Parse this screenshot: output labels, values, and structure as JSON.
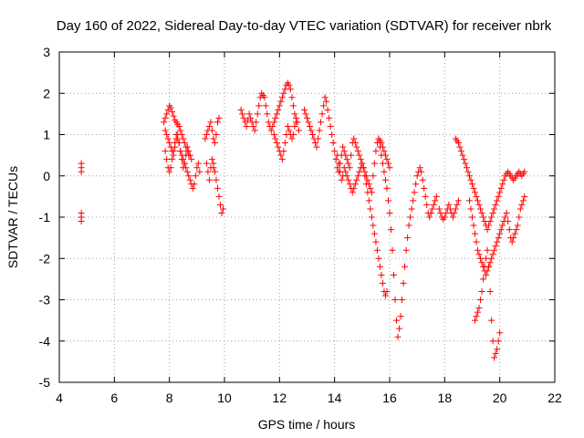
{
  "chart_data": {
    "type": "scatter",
    "title": "Day 160 of 2022, Sidereal Day-to-day VTEC variation (SDTVAR) for receiver nbrk",
    "xlabel": "GPS time / hours",
    "ylabel": "SDTVAR / TECUs",
    "xlim": [
      4,
      22
    ],
    "ylim": [
      -5,
      3
    ],
    "xticks": [
      4,
      6,
      8,
      10,
      12,
      14,
      16,
      18,
      20,
      22
    ],
    "yticks": [
      -5,
      -4,
      -3,
      -2,
      -1,
      0,
      1,
      2,
      3
    ],
    "grid": true,
    "marker": "+",
    "color": "#ff0000",
    "series": [
      {
        "name": "SDTVAR",
        "x": [
          4.8,
          4.8,
          4.8,
          4.8,
          4.8,
          4.8,
          7.8,
          7.85,
          7.9,
          7.95,
          8.0,
          8.05,
          8.1,
          8.15,
          8.2,
          8.25,
          8.3,
          8.35,
          8.4,
          8.45,
          8.5,
          8.55,
          8.6,
          8.65,
          8.7,
          7.85,
          7.9,
          7.95,
          8.0,
          8.05,
          8.1,
          8.15,
          8.2,
          8.25,
          8.3,
          8.35,
          8.4,
          8.45,
          8.5,
          8.55,
          8.6,
          8.65,
          8.7,
          8.75,
          8.8,
          8.85,
          8.9,
          8.95,
          9.0,
          9.05,
          9.1,
          7.85,
          7.9,
          7.95,
          8.0,
          8.05,
          8.1,
          8.15,
          8.2,
          8.25,
          8.3,
          8.35,
          8.4,
          8.45,
          8.5,
          8.55,
          8.6,
          8.65,
          8.7,
          8.75,
          8.8,
          9.3,
          9.35,
          9.4,
          9.45,
          9.5,
          9.55,
          9.6,
          9.65,
          9.7,
          9.75,
          9.8,
          9.6,
          9.65,
          9.7,
          9.75,
          9.8,
          9.85,
          9.9,
          9.95,
          9.35,
          9.4,
          9.45,
          9.5,
          9.55,
          9.6,
          10.6,
          10.65,
          10.7,
          10.75,
          10.8,
          10.85,
          10.9,
          10.95,
          11.0,
          11.05,
          11.1,
          11.15,
          11.2,
          11.25,
          11.3,
          11.35,
          11.4,
          11.45,
          11.5,
          11.55,
          11.6,
          11.65,
          11.7,
          11.75,
          11.8,
          11.85,
          11.9,
          11.95,
          12.0,
          12.05,
          12.1,
          12.15,
          12.2,
          12.25,
          12.3,
          12.35,
          12.4,
          12.45,
          12.5,
          12.55,
          12.6,
          11.8,
          11.85,
          11.9,
          11.95,
          12.0,
          12.05,
          12.1,
          12.15,
          12.2,
          12.25,
          12.3,
          12.35,
          12.4,
          12.45,
          12.5,
          12.55,
          12.6,
          12.65,
          12.7,
          12.9,
          12.95,
          13.0,
          13.05,
          13.1,
          13.15,
          13.2,
          13.25,
          13.3,
          13.35,
          13.4,
          13.45,
          13.5,
          13.55,
          13.6,
          13.65,
          13.7,
          13.75,
          13.8,
          13.85,
          13.9,
          13.95,
          14.0,
          14.05,
          14.1,
          14.15,
          14.2,
          14.25,
          14.3,
          14.35,
          14.4,
          14.45,
          14.5,
          14.55,
          14.6,
          14.65,
          14.7,
          14.75,
          14.8,
          14.85,
          14.9,
          14.95,
          15.0,
          15.05,
          15.1,
          15.15,
          15.2,
          15.25,
          15.3,
          15.35,
          15.4,
          15.45,
          15.5,
          15.55,
          15.6,
          15.65,
          15.7,
          15.75,
          15.8,
          15.85,
          15.9,
          15.95,
          16.0,
          14.1,
          14.15,
          14.2,
          14.25,
          14.3,
          14.35,
          14.4,
          14.45,
          14.5,
          14.55,
          14.6,
          14.65,
          14.7,
          14.75,
          14.8,
          14.85,
          14.9,
          14.95,
          15.0,
          15.05,
          15.1,
          15.15,
          15.2,
          15.25,
          15.3,
          15.35,
          15.4,
          15.45,
          15.5,
          15.55,
          15.6,
          15.65,
          15.7,
          15.75,
          15.8,
          15.85,
          15.9,
          15.6,
          15.65,
          15.7,
          15.75,
          15.8,
          15.85,
          15.9,
          15.95,
          16.0,
          16.05,
          16.1,
          16.15,
          16.2,
          16.25,
          16.3,
          16.35,
          16.4,
          16.45,
          16.5,
          16.55,
          16.6,
          16.65,
          16.7,
          16.75,
          16.8,
          16.85,
          16.9,
          16.95,
          17.0,
          17.05,
          17.1,
          17.15,
          17.2,
          17.25,
          17.3,
          17.35,
          17.4,
          17.45,
          17.5,
          17.55,
          17.6,
          17.65,
          17.7,
          17.8,
          17.85,
          17.9,
          17.95,
          18.0,
          18.05,
          18.1,
          18.15,
          18.2,
          18.25,
          18.3,
          18.35,
          18.4,
          18.45,
          18.5,
          18.4,
          18.45,
          18.5,
          18.55,
          18.6,
          18.65,
          18.7,
          18.75,
          18.8,
          18.85,
          18.9,
          18.95,
          19.0,
          19.05,
          19.1,
          19.15,
          19.2,
          19.25,
          19.3,
          19.35,
          19.4,
          19.45,
          19.5,
          19.55,
          19.6,
          19.65,
          19.7,
          19.75,
          19.8,
          19.85,
          19.9,
          19.95,
          20.0,
          20.05,
          20.1,
          20.15,
          20.2,
          20.25,
          20.3,
          20.35,
          20.4,
          20.45,
          20.5,
          20.55,
          20.6,
          20.65,
          20.7,
          20.75,
          20.8,
          20.85,
          20.9,
          18.9,
          18.95,
          19.0,
          19.05,
          19.1,
          19.15,
          19.2,
          19.25,
          19.3,
          19.35,
          19.4,
          19.45,
          19.5,
          19.55,
          19.6,
          19.65,
          19.7,
          19.75,
          19.8,
          19.85,
          19.9,
          19.95,
          20.0,
          20.05,
          20.1,
          20.15,
          20.2,
          20.25,
          20.3,
          20.35,
          20.4,
          20.45,
          20.5,
          20.55,
          20.6,
          20.65,
          20.7,
          20.75,
          20.8,
          20.85,
          20.9,
          19.1,
          19.15,
          19.2,
          19.25,
          19.3,
          19.35,
          19.4,
          19.45,
          19.5,
          19.55,
          19.6,
          19.65,
          19.7,
          19.75,
          19.8,
          19.85,
          19.9,
          19.95,
          20.0
        ],
        "y": [
          0.3,
          0.2,
          0.1,
          -0.9,
          -1.0,
          -1.1,
          1.3,
          1.4,
          1.5,
          1.6,
          1.7,
          1.65,
          1.55,
          1.45,
          1.35,
          1.3,
          1.25,
          1.2,
          1.1,
          1.0,
          0.9,
          0.8,
          0.7,
          0.6,
          0.5,
          0.6,
          0.4,
          0.2,
          0.1,
          0.2,
          0.4,
          0.6,
          0.8,
          1.0,
          0.9,
          0.8,
          0.6,
          0.5,
          0.4,
          0.3,
          0.2,
          0.1,
          0.0,
          -0.1,
          -0.2,
          -0.3,
          -0.2,
          0.0,
          0.2,
          0.3,
          0.1,
          1.1,
          1.0,
          0.9,
          0.8,
          0.7,
          0.6,
          0.5,
          0.7,
          0.9,
          1.0,
          0.8,
          0.6,
          0.4,
          0.2,
          0.3,
          0.5,
          0.7,
          0.6,
          0.5,
          0.4,
          0.9,
          1.0,
          1.1,
          1.2,
          1.3,
          1.1,
          0.9,
          0.8,
          1.0,
          1.3,
          1.4,
          0.2,
          0.1,
          -0.1,
          -0.3,
          -0.5,
          -0.7,
          -0.9,
          -0.8,
          0.3,
          0.1,
          -0.1,
          0.2,
          0.4,
          0.3,
          1.6,
          1.5,
          1.4,
          1.3,
          1.2,
          1.35,
          1.5,
          1.4,
          1.3,
          1.2,
          1.1,
          1.3,
          1.5,
          1.7,
          1.9,
          2.0,
          1.95,
          1.9,
          1.7,
          1.5,
          1.3,
          1.2,
          1.1,
          1.2,
          1.3,
          1.4,
          1.5,
          1.6,
          1.7,
          1.8,
          1.9,
          2.0,
          2.1,
          2.2,
          2.25,
          2.2,
          2.1,
          1.9,
          1.7,
          1.5,
          1.3,
          1.0,
          0.9,
          0.8,
          0.7,
          0.6,
          0.5,
          0.4,
          0.6,
          0.8,
          1.0,
          1.2,
          1.1,
          1.0,
          0.9,
          1.0,
          1.2,
          1.4,
          1.3,
          1.1,
          1.6,
          1.5,
          1.4,
          1.3,
          1.2,
          1.1,
          1.0,
          0.9,
          0.8,
          0.7,
          0.9,
          1.1,
          1.3,
          1.5,
          1.7,
          1.9,
          1.8,
          1.6,
          1.4,
          1.2,
          1.0,
          0.8,
          0.6,
          0.4,
          0.2,
          0.1,
          0.3,
          0.5,
          0.7,
          0.6,
          0.5,
          0.4,
          0.3,
          0.2,
          0.5,
          0.8,
          0.9,
          0.8,
          0.7,
          0.6,
          0.5,
          0.4,
          0.3,
          0.2,
          0.1,
          0.0,
          -0.1,
          -0.2,
          -0.3,
          -0.4,
          0.0,
          0.3,
          0.6,
          0.8,
          0.9,
          0.85,
          0.8,
          0.7,
          0.6,
          0.5,
          0.4,
          0.3,
          0.2,
          0.5,
          0.3,
          0.1,
          -0.1,
          0.0,
          0.2,
          0.1,
          0.0,
          -0.1,
          -0.2,
          -0.3,
          -0.4,
          -0.3,
          -0.2,
          -0.1,
          0.0,
          0.1,
          0.2,
          0.3,
          0.2,
          0.0,
          -0.2,
          -0.4,
          -0.6,
          -0.8,
          -1.0,
          -1.2,
          -1.4,
          -1.6,
          -1.8,
          -2.0,
          -2.2,
          -2.4,
          -2.6,
          -2.8,
          -2.9,
          -2.8,
          0.9,
          0.7,
          0.5,
          0.3,
          0.1,
          -0.1,
          -0.3,
          -0.6,
          -0.9,
          -1.3,
          -1.8,
          -2.4,
          -3.0,
          -3.5,
          -3.9,
          -3.7,
          -3.4,
          -3.0,
          -2.6,
          -2.2,
          -1.8,
          -1.5,
          -1.2,
          -1.0,
          -0.8,
          -0.6,
          -0.4,
          -0.2,
          0.0,
          0.1,
          0.2,
          0.1,
          -0.1,
          -0.3,
          -0.5,
          -0.7,
          -0.9,
          -1.0,
          -0.9,
          -0.8,
          -0.7,
          -0.6,
          -0.5,
          -0.8,
          -0.9,
          -1.0,
          -1.05,
          -1.0,
          -0.9,
          -0.8,
          -0.7,
          -0.8,
          -0.9,
          -1.0,
          -0.9,
          -0.8,
          -0.7,
          -0.6,
          0.9,
          0.85,
          0.8,
          0.7,
          0.6,
          0.5,
          0.4,
          0.3,
          0.2,
          0.1,
          0.0,
          -0.1,
          -0.2,
          -0.3,
          -0.4,
          -0.5,
          -0.6,
          -0.7,
          -0.8,
          -0.9,
          -1.0,
          -1.1,
          -1.2,
          -1.3,
          -1.2,
          -1.1,
          -1.0,
          -0.9,
          -0.8,
          -0.7,
          -0.6,
          -0.5,
          -0.4,
          -0.3,
          -0.2,
          -0.1,
          0.0,
          0.05,
          0.1,
          0.05,
          0.0,
          -0.05,
          -0.1,
          -0.05,
          0.0,
          0.05,
          0.1,
          0.05,
          0.0,
          0.05,
          0.1,
          -0.6,
          -0.8,
          -1.0,
          -1.2,
          -1.4,
          -1.6,
          -1.8,
          -1.9,
          -2.0,
          -2.1,
          -2.2,
          -2.3,
          -2.4,
          -2.3,
          -2.2,
          -2.1,
          -2.0,
          -1.9,
          -1.8,
          -1.7,
          -1.6,
          -1.5,
          -1.4,
          -1.3,
          -1.2,
          -1.1,
          -1.0,
          -0.9,
          -1.1,
          -1.3,
          -1.5,
          -1.6,
          -1.5,
          -1.4,
          -1.3,
          -1.2,
          -1.0,
          -0.8,
          -0.7,
          -0.6,
          -0.5,
          -3.5,
          -3.4,
          -3.3,
          -3.2,
          -3.0,
          -2.8,
          -2.5,
          -2.2,
          -2.0,
          -1.8,
          -2.2,
          -2.8,
          -3.5,
          -4.0,
          -4.4,
          -4.3,
          -4.2,
          -4.0,
          -3.8
        ]
      }
    ]
  }
}
